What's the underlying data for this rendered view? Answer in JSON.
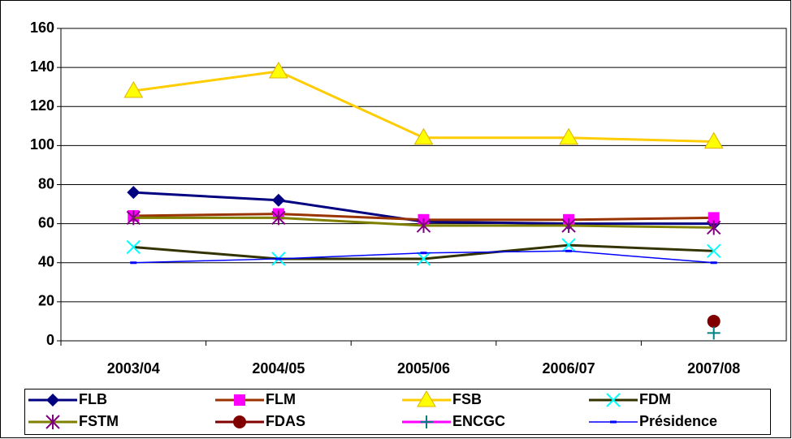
{
  "chart_data": {
    "type": "line",
    "categories": [
      "2003/04",
      "2004/05",
      "2005/06",
      "2006/07",
      "2007/08"
    ],
    "ylim": [
      0,
      160
    ],
    "yticks": [
      0,
      20,
      40,
      60,
      80,
      100,
      120,
      140,
      160
    ],
    "grid": true,
    "legend": "bottom",
    "series": [
      {
        "name": "FLB",
        "color": "#000080",
        "marker": "diamond",
        "marker_color": "#000080",
        "values": [
          76,
          72,
          61,
          60,
          60
        ]
      },
      {
        "name": "FLM",
        "color": "#993300",
        "marker": "square",
        "marker_color": "#ff00ff",
        "values": [
          64,
          65,
          62,
          62,
          63
        ]
      },
      {
        "name": "FSB",
        "color": "#ffcc00",
        "marker": "triangle",
        "marker_color": "#ffff00",
        "values": [
          128,
          138,
          104,
          104,
          102
        ]
      },
      {
        "name": "FDM",
        "color": "#333300",
        "marker": "x",
        "marker_color": "#00ffff",
        "values": [
          48,
          42,
          42,
          49,
          46
        ]
      },
      {
        "name": "FSTM",
        "color": "#808000",
        "marker": "star",
        "marker_color": "#800080",
        "values": [
          63,
          63,
          59,
          59,
          58
        ]
      },
      {
        "name": "FDAS",
        "color": "#800000",
        "marker": "circle",
        "marker_color": "#800000",
        "values": [
          null,
          null,
          null,
          null,
          10
        ]
      },
      {
        "name": "ENCGC",
        "color": "#ff00ff",
        "marker": "plus",
        "marker_color": "#008080",
        "values": [
          null,
          null,
          null,
          null,
          4
        ]
      },
      {
        "name": "Présidence",
        "color": "#0000ff",
        "marker": "dash",
        "marker_color": "#0000ff",
        "values": [
          40,
          42,
          45,
          46,
          40
        ]
      }
    ]
  }
}
